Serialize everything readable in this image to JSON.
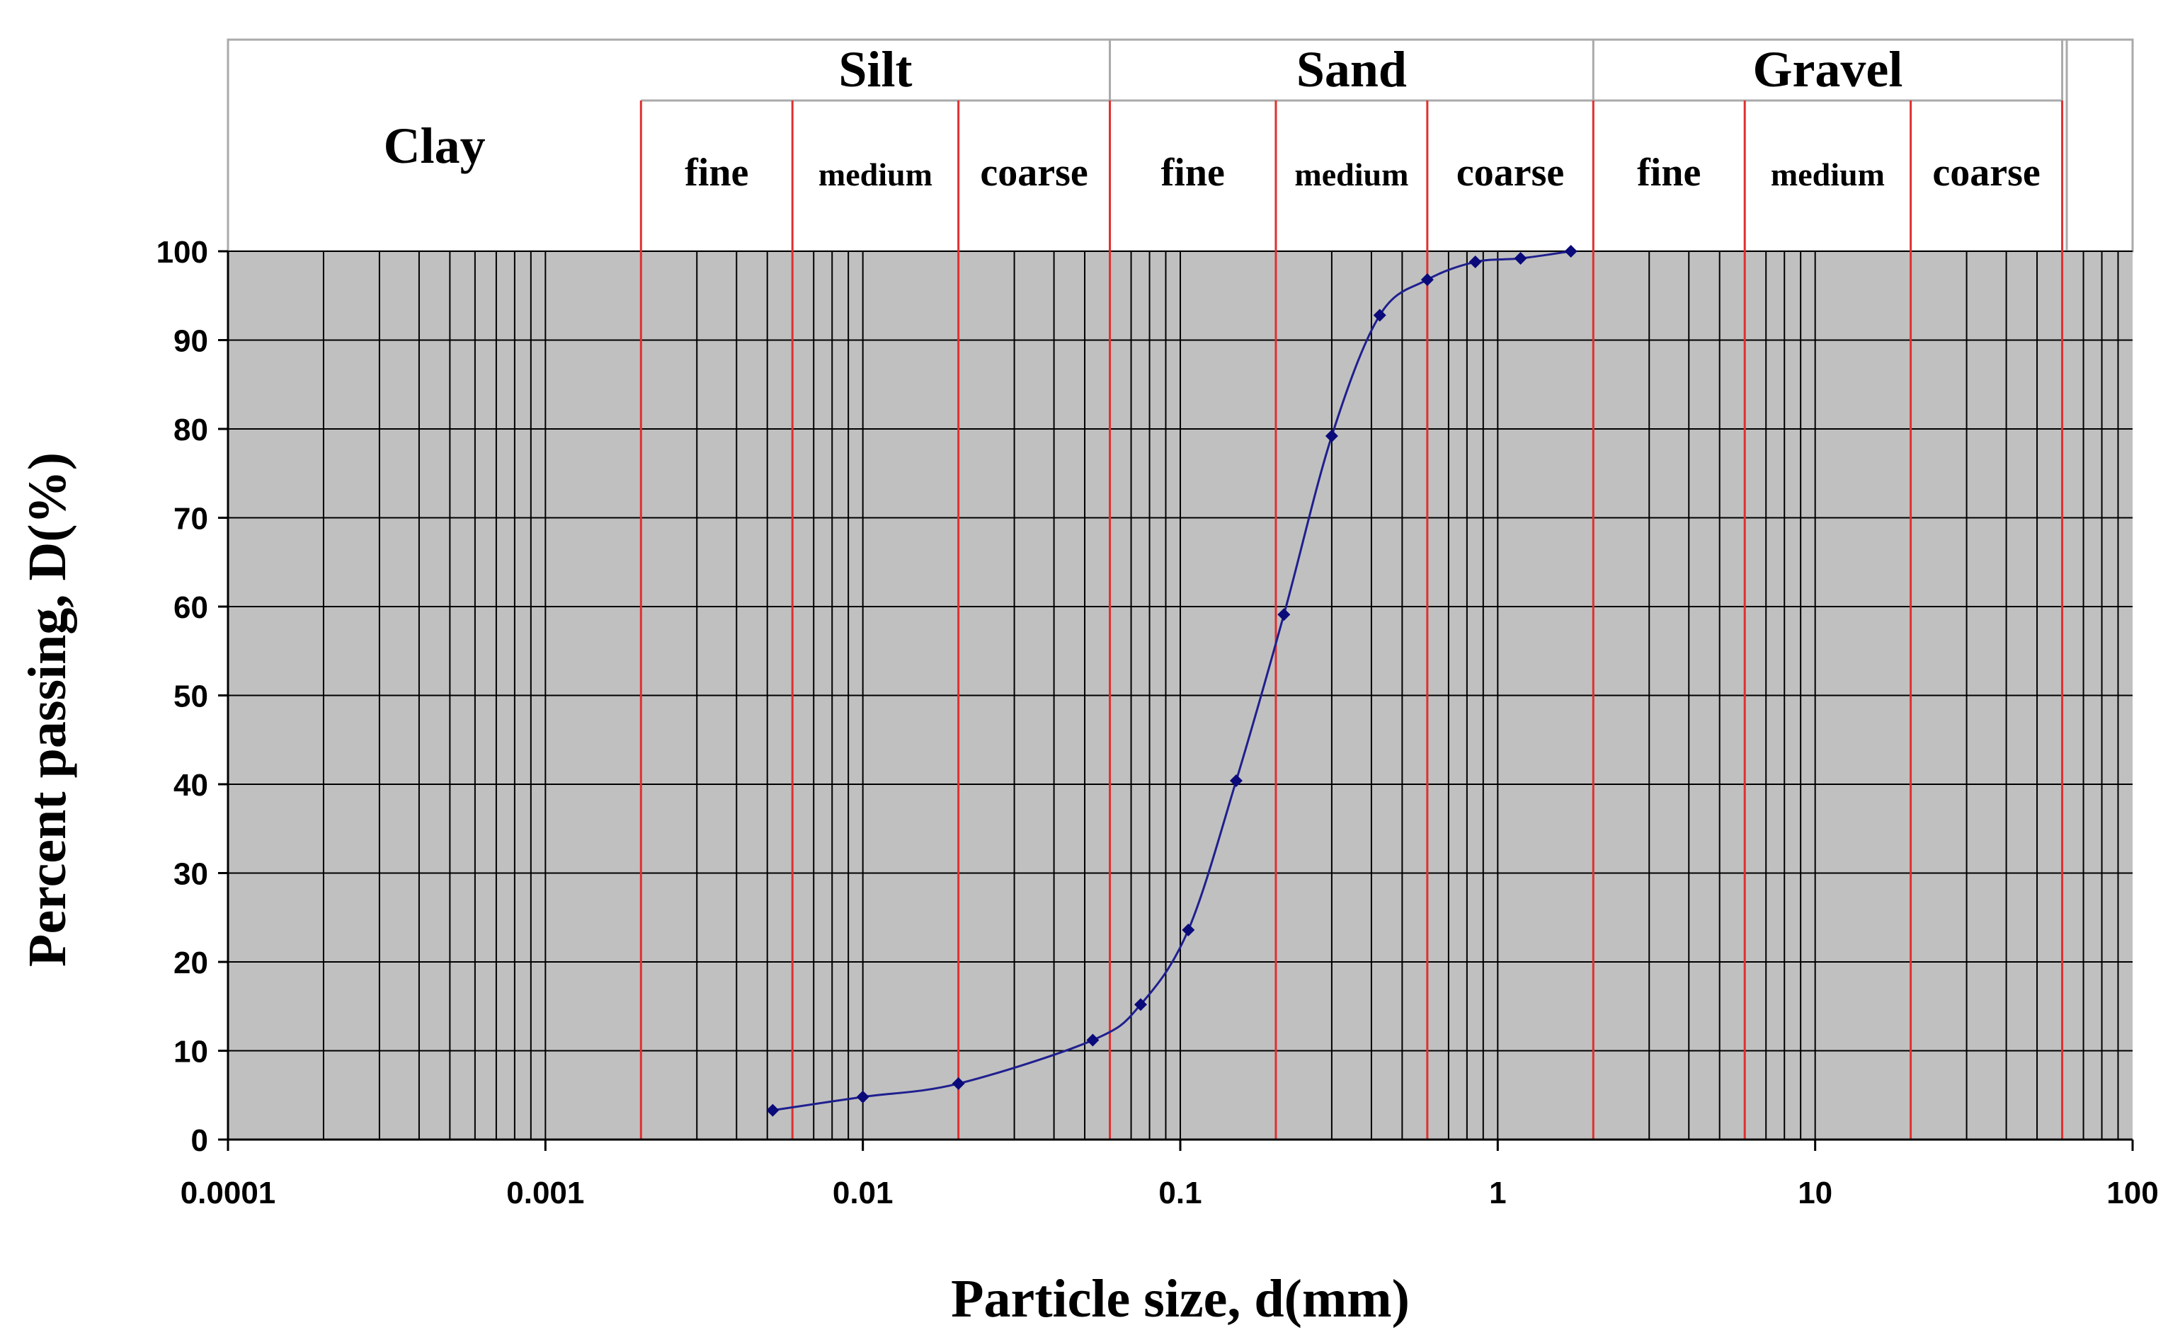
{
  "chart_data": {
    "type": "line",
    "title": "",
    "xlabel": "Particle size, d(mm)",
    "ylabel": "Percent passing, D(%)",
    "x_scale": "log",
    "xlim": [
      0.0001,
      100
    ],
    "ylim": [
      0,
      100
    ],
    "grid": true,
    "plot_background": "#c0c0c0",
    "line_color": "#1f1f8f",
    "boundary_color": "#e03030",
    "x_tick_labels": [
      "0.0001",
      "0.001",
      "0.01",
      "0.1",
      "1",
      "10",
      "100"
    ],
    "x_ticks": [
      0.0001,
      0.001,
      0.01,
      0.1,
      1,
      10,
      100
    ],
    "y_ticks": [
      0,
      10,
      20,
      30,
      40,
      50,
      60,
      70,
      80,
      90,
      100
    ],
    "y_tick_labels": [
      "0",
      "10",
      "20",
      "30",
      "40",
      "50",
      "60",
      "70",
      "80",
      "90",
      "100"
    ],
    "series": [
      {
        "x": [
          0.0052,
          0.01,
          0.02,
          0.053,
          0.075,
          0.106,
          0.15,
          0.212,
          0.3,
          0.425,
          0.6,
          0.85,
          1.18,
          1.7
        ],
        "y": [
          3.3,
          4.8,
          6.3,
          11.2,
          15.2,
          23.6,
          40.4,
          59.1,
          79.2,
          92.8,
          96.8,
          98.8,
          99.2,
          100
        ]
      }
    ],
    "soil_classes": [
      {
        "name": "Clay",
        "from": 0.0001,
        "to": 0.002,
        "subdivisions": []
      },
      {
        "name": "Silt",
        "from": 0.002,
        "to": 0.06,
        "subdivisions": [
          {
            "name": "fine",
            "from": 0.002,
            "to": 0.006
          },
          {
            "name": "medium",
            "from": 0.006,
            "to": 0.02
          },
          {
            "name": "coarse",
            "from": 0.02,
            "to": 0.06
          }
        ]
      },
      {
        "name": "Sand",
        "from": 0.06,
        "to": 2,
        "subdivisions": [
          {
            "name": "fine",
            "from": 0.06,
            "to": 0.2
          },
          {
            "name": "medium",
            "from": 0.2,
            "to": 0.6
          },
          {
            "name": "coarse",
            "from": 0.6,
            "to": 2
          }
        ]
      },
      {
        "name": "Gravel",
        "from": 2,
        "to": 60,
        "subdivisions": [
          {
            "name": "fine",
            "from": 2,
            "to": 6
          },
          {
            "name": "medium",
            "from": 6,
            "to": 20
          },
          {
            "name": "coarse",
            "from": 20,
            "to": 60
          }
        ]
      }
    ],
    "boundaries": [
      0.002,
      0.006,
      0.02,
      0.06,
      0.2,
      0.6,
      2,
      6,
      20,
      60
    ]
  }
}
